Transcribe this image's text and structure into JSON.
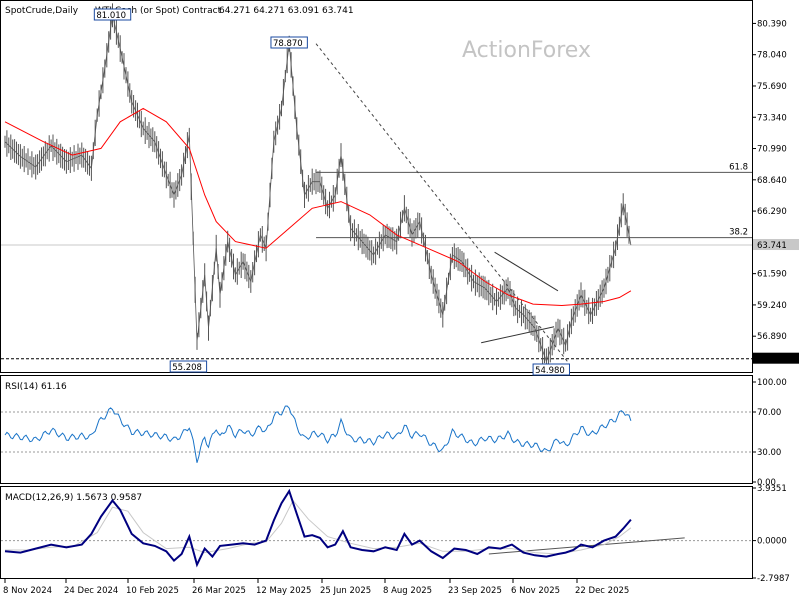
{
  "header": {
    "symbol": "SpotCrude,Daily",
    "description": "WTI Cash (or Spot) Contract",
    "ohlc": "64.271 64.271 63.091 63.741"
  },
  "watermark": "ActionForex",
  "colors": {
    "background": "#ffffff",
    "candles": "#555555",
    "ma": "#ff0000",
    "indicator_line": "#1a74c8",
    "macd_line": "#000080",
    "signal_line": "#c8c8c8",
    "axis": "#000000",
    "last_price_tag": "#c8c8c8"
  },
  "chart_data": [
    {
      "type": "line",
      "panel": "price",
      "ylim": [
        54.2,
        82.0
      ],
      "y_ticks": [
        "80.390",
        "78.040",
        "75.690",
        "73.340",
        "70.990",
        "68.640",
        "66.290",
        "61.590",
        "59.240",
        "56.890"
      ],
      "x_ticks": [
        "8 Nov 2024",
        "24 Dec 2024",
        "10 Feb 2025",
        "26 Mar 2025",
        "12 May 2025",
        "25 Jun 2025",
        "8 Aug 2025",
        "23 Sep 2025",
        "6 Nov 2025",
        "22 Dec 2025"
      ],
      "series": [
        {
          "name": "",
          "x": [
            0,
            8,
            16,
            24,
            32,
            40,
            45,
            48,
            52,
            56,
            60,
            66,
            72,
            78,
            84,
            88,
            92,
            96,
            100,
            104,
            106,
            110,
            112,
            116,
            120,
            124,
            128,
            133,
            136,
            140,
            144,
            148,
            152,
            156,
            160,
            164,
            168,
            172,
            175,
            180,
            186,
            192,
            198,
            204,
            208,
            212,
            216,
            222,
            228,
            233,
            238,
            244,
            250,
            256,
            262,
            266,
            270,
            276,
            282,
            288,
            292,
            295,
            300,
            305,
            312,
            318,
            322,
            326
          ],
          "y": [
            71.5,
            70.4,
            69.6,
            71.2,
            70.0,
            70.5,
            69.5,
            73.5,
            77.0,
            81.0,
            78.5,
            74.5,
            72.5,
            71.5,
            69.0,
            67.5,
            69.0,
            72.0,
            56.5,
            61.5,
            57.5,
            63.5,
            60.0,
            64.0,
            61.5,
            62.5,
            61.0,
            64.5,
            63.5,
            71.5,
            74.0,
            78.87,
            72.5,
            67.5,
            68.5,
            68.5,
            66.5,
            67.5,
            70.5,
            65.0,
            64.0,
            63.0,
            64.5,
            64.0,
            66.5,
            64.5,
            65.5,
            61.5,
            58.5,
            63.0,
            62.5,
            61.0,
            60.5,
            59.5,
            60.5,
            59.0,
            58.5,
            57.5,
            55.0,
            57.5,
            56.2,
            58.0,
            60.0,
            58.5,
            60.5,
            63.5,
            66.8,
            63.741
          ],
          "color": "#555555"
        },
        {
          "name": "",
          "x": [
            0,
            20,
            35,
            50,
            60,
            72,
            84,
            96,
            104,
            110,
            120,
            136,
            148,
            160,
            175,
            190,
            204,
            220,
            236,
            250,
            262,
            275,
            290,
            300,
            312,
            320,
            326
          ],
          "y": [
            73.0,
            71.5,
            70.5,
            71.0,
            73.0,
            74.0,
            73.0,
            71.0,
            67.5,
            65.5,
            64.0,
            63.5,
            65.0,
            66.5,
            67.0,
            66.0,
            64.5,
            63.5,
            62.5,
            61.0,
            60.0,
            59.3,
            59.2,
            59.3,
            59.5,
            59.8,
            60.3
          ],
          "color": "#ff0000"
        }
      ],
      "annotations": {
        "high_left": "81.010",
        "high_mid": "78.870",
        "low_left": "55.208",
        "low_right": "54.980",
        "fib_61_8": "61.8",
        "fib_38_2": "38.2",
        "fib_61_8_level": 69.2,
        "fib_38_2_level": 64.3,
        "last_price": "63.741",
        "dashed_level": "55.200"
      }
    },
    {
      "type": "line",
      "panel": "indicator",
      "title": "RSI(14) 61.16",
      "ylim": [
        0,
        100
      ],
      "y_ticks": [
        "100.00",
        "70.00",
        "30.00",
        "0.00"
      ],
      "levels": [
        70,
        30
      ],
      "series": [
        {
          "name": "",
          "x": [
            0,
            8,
            16,
            24,
            32,
            40,
            45,
            48,
            52,
            56,
            60,
            66,
            72,
            78,
            84,
            88,
            92,
            96,
            100,
            104,
            106,
            110,
            112,
            116,
            120,
            124,
            128,
            133,
            136,
            140,
            144,
            148,
            152,
            156,
            160,
            164,
            168,
            172,
            175,
            180,
            186,
            192,
            198,
            204,
            208,
            212,
            216,
            222,
            228,
            233,
            238,
            244,
            250,
            256,
            262,
            266,
            270,
            276,
            282,
            288,
            292,
            295,
            300,
            305,
            312,
            318,
            322,
            326
          ],
          "y": [
            47,
            45,
            42,
            52,
            44,
            46,
            45,
            58,
            66,
            74,
            62,
            50,
            49,
            47,
            45,
            42,
            47,
            56,
            22,
            45,
            36,
            55,
            44,
            56,
            47,
            52,
            47,
            55,
            50,
            66,
            70,
            76,
            55,
            43,
            48,
            48,
            42,
            47,
            60,
            43,
            42,
            40,
            48,
            45,
            56,
            46,
            49,
            38,
            31,
            50,
            45,
            38,
            44,
            42,
            48,
            40,
            38,
            37,
            30,
            43,
            36,
            43,
            54,
            47,
            56,
            63,
            72,
            61.16
          ],
          "color": "#1a74c8"
        }
      ]
    },
    {
      "type": "line",
      "panel": "indicator",
      "title": "MACD(12,26,9) 1.5673 0.9587",
      "ylim": [
        -2.7987,
        3.9351
      ],
      "y_ticks": [
        "3.9351",
        "0.0000",
        "-2.7987"
      ],
      "levels": [
        0
      ],
      "series": [
        {
          "name": "",
          "x": [
            0,
            8,
            16,
            24,
            32,
            40,
            45,
            50,
            56,
            60,
            66,
            72,
            78,
            84,
            88,
            92,
            96,
            100,
            104,
            108,
            112,
            118,
            124,
            130,
            136,
            140,
            144,
            148,
            152,
            156,
            160,
            164,
            168,
            172,
            176,
            180,
            186,
            192,
            198,
            204,
            208,
            212,
            216,
            222,
            228,
            234,
            240,
            246,
            252,
            258,
            264,
            270,
            276,
            282,
            288,
            292,
            296,
            300,
            306,
            312,
            318,
            322,
            326
          ],
          "y": [
            -0.8,
            -0.9,
            -0.6,
            -0.3,
            -0.5,
            -0.3,
            0.5,
            1.8,
            3.0,
            2.3,
            0.5,
            -0.2,
            -0.4,
            -0.8,
            -1.5,
            -1.0,
            0.3,
            -1.8,
            -0.6,
            -1.2,
            -0.4,
            -0.3,
            -0.2,
            -0.3,
            0.0,
            1.5,
            2.8,
            3.7,
            2.0,
            0.3,
            0.4,
            0.2,
            -0.5,
            -0.3,
            0.7,
            -0.5,
            -0.7,
            -0.8,
            -0.5,
            -0.7,
            0.5,
            -0.3,
            0.0,
            -0.8,
            -1.3,
            -0.6,
            -0.7,
            -1.0,
            -0.5,
            -0.6,
            -0.3,
            -0.9,
            -1.1,
            -1.2,
            -1.0,
            -0.9,
            -0.7,
            -0.3,
            -0.5,
            0.0,
            0.3,
            0.9,
            1.5673
          ],
          "color": "#000080"
        },
        {
          "name": "",
          "x": [
            0,
            12,
            24,
            36,
            48,
            56,
            64,
            72,
            84,
            96,
            104,
            116,
            128,
            136,
            144,
            150,
            158,
            168,
            180,
            192,
            204,
            216,
            228,
            240,
            252,
            264,
            276,
            288,
            300,
            312,
            320,
            326
          ],
          "y": [
            -0.7,
            -0.7,
            -0.5,
            -0.4,
            0.6,
            2.5,
            2.2,
            0.6,
            -0.6,
            -0.5,
            -0.9,
            -0.6,
            -0.2,
            -0.1,
            1.3,
            3.0,
            1.6,
            0.3,
            -0.2,
            -0.6,
            -0.5,
            -0.2,
            -0.8,
            -0.8,
            -0.6,
            -0.6,
            -0.9,
            -1.0,
            -0.7,
            -0.3,
            0.3,
            0.9587
          ],
          "color": "#c8c8c8"
        }
      ]
    }
  ]
}
